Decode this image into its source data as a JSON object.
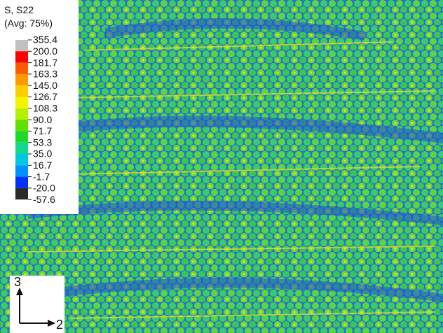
{
  "legend": {
    "title": [
      "S, S22",
      "(Avg: 75%)"
    ],
    "labels": [
      "355.4",
      "200.0",
      "181.7",
      "163.3",
      "145.0",
      "126.7",
      "108.3",
      "90.0",
      "71.7",
      "53.3",
      "35.0",
      "16.7",
      "-1.7",
      "-20.0",
      "-57.6"
    ],
    "colors": [
      "#c0c0c0",
      "#ff0000",
      "#ff5a00",
      "#ff9a00",
      "#ffce00",
      "#f4f400",
      "#b4f000",
      "#60e000",
      "#1ed82a",
      "#10d890",
      "#00c8e0",
      "#0090ff",
      "#0030ff",
      "#2a2a2a"
    ]
  },
  "triad": {
    "vertical": "3",
    "horizontal": "2"
  }
}
